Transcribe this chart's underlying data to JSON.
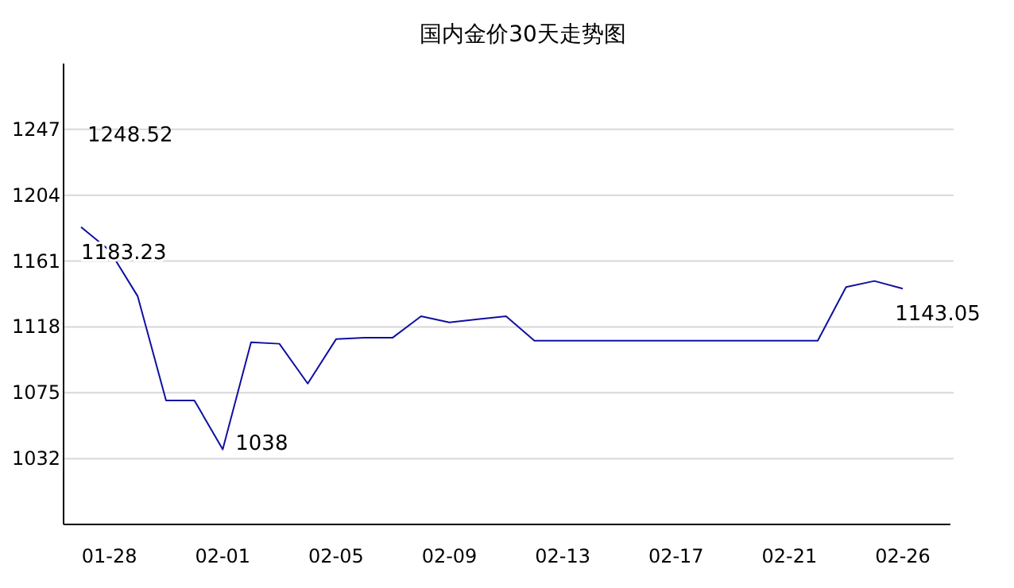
{
  "chart_data": {
    "type": "line",
    "title": "国内金价30天走势图",
    "categories": [
      null,
      "01-28",
      null,
      null,
      null,
      "02-01",
      null,
      null,
      null,
      "02-05",
      null,
      null,
      null,
      "02-09",
      null,
      null,
      null,
      "02-13",
      null,
      null,
      null,
      "02-17",
      null,
      null,
      null,
      "02-21",
      null,
      null,
      null,
      "02-26"
    ],
    "series": [
      {
        "color": "#1010a0",
        "values": [
          1183.23,
          1168,
          1138,
          1070,
          1070,
          1038,
          1108,
          1107,
          1081,
          1110,
          1111,
          1111,
          1125,
          1121,
          1123,
          1125,
          1109,
          1109,
          1109,
          1109,
          1109,
          1109,
          1109,
          1109,
          1109,
          1109,
          1109,
          1144,
          1148,
          1143.05
        ],
        "value_labels": [
          "1183.23",
          null,
          null,
          null,
          null,
          "1038",
          null,
          null,
          null,
          null,
          null,
          null,
          null,
          null,
          null,
          null,
          null,
          null,
          null,
          null,
          null,
          null,
          null,
          null,
          null,
          null,
          null,
          null,
          null,
          "1143.05"
        ]
      }
    ],
    "annotations": [
      "1248.52"
    ],
    "ylim": [
      989,
      1290
    ],
    "yticks": [
      1032,
      1075,
      1118,
      1161,
      1204,
      1247
    ],
    "grid": "y",
    "marker": "none",
    "line_style": "solid"
  }
}
